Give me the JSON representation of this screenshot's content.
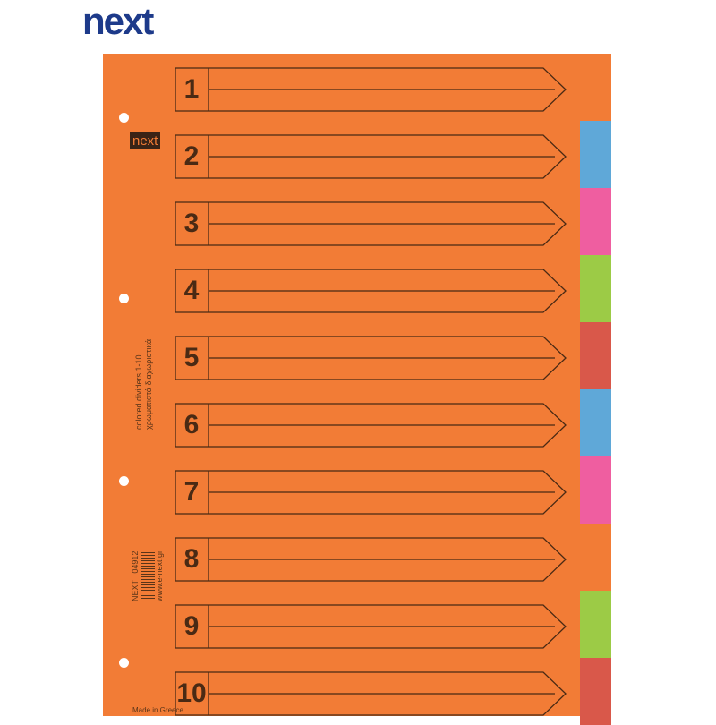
{
  "brand": "next",
  "minilogo": "next",
  "product": {
    "line1": "colored dividers 1-10",
    "line2": "χρωματιστά διαχωριστικά"
  },
  "barcode": {
    "brand": "NEXT",
    "code": "04912",
    "url": "www.e-next.gr",
    "origin": "Made in Greece"
  },
  "rows": [
    "1",
    "2",
    "3",
    "4",
    "5",
    "6",
    "7",
    "8",
    "9",
    "10"
  ],
  "tab_colors": [
    "#5fa8d8",
    "#ef5ea0",
    "#9ccb46",
    "#d9584a",
    "#5fa8d8",
    "#ef5ea0",
    "#f27c36",
    "#9ccb46",
    "#d9584a"
  ],
  "sheet_color": "#f27c36"
}
